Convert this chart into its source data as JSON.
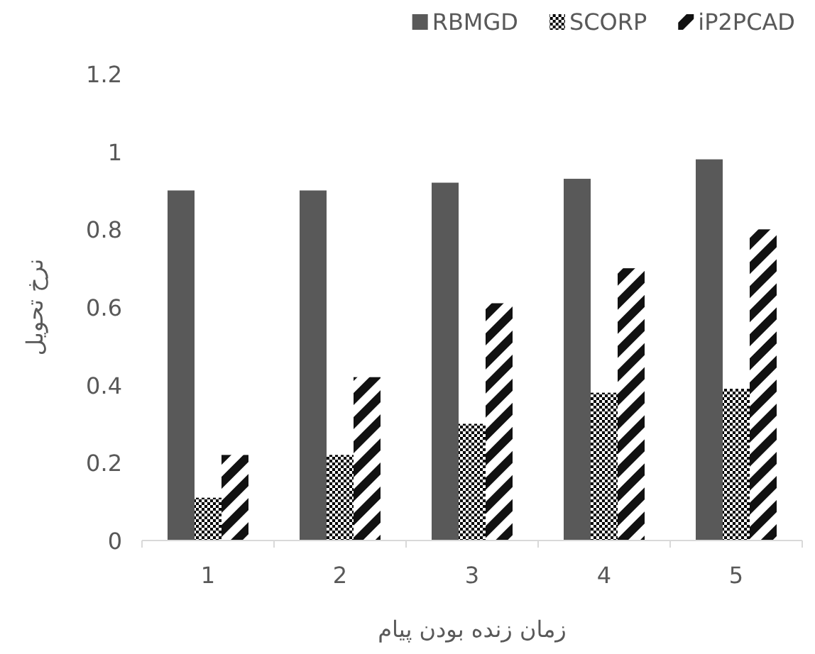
{
  "chart_data": {
    "type": "bar",
    "xlabel": "زمان زنده بودن پیام",
    "ylabel": "نرخ تحویل",
    "categories": [
      "1",
      "2",
      "3",
      "4",
      "5"
    ],
    "series": [
      {
        "name": "RBMGD",
        "color": "#595959",
        "values": [
          0.9,
          0.9,
          0.92,
          0.93,
          0.98
        ]
      },
      {
        "name": "SCORP",
        "color": "#000000",
        "values": [
          0.11,
          0.22,
          0.3,
          0.38,
          0.39
        ]
      },
      {
        "name": "iP2PCAD",
        "color": "#111111",
        "values": [
          0.22,
          0.42,
          0.61,
          0.7,
          0.8
        ]
      }
    ],
    "ylim": [
      0,
      1.2
    ],
    "yticks": [
      0,
      0.2,
      0.4,
      0.6,
      0.8,
      1,
      1.2
    ],
    "legend": "top right",
    "grid": false
  }
}
